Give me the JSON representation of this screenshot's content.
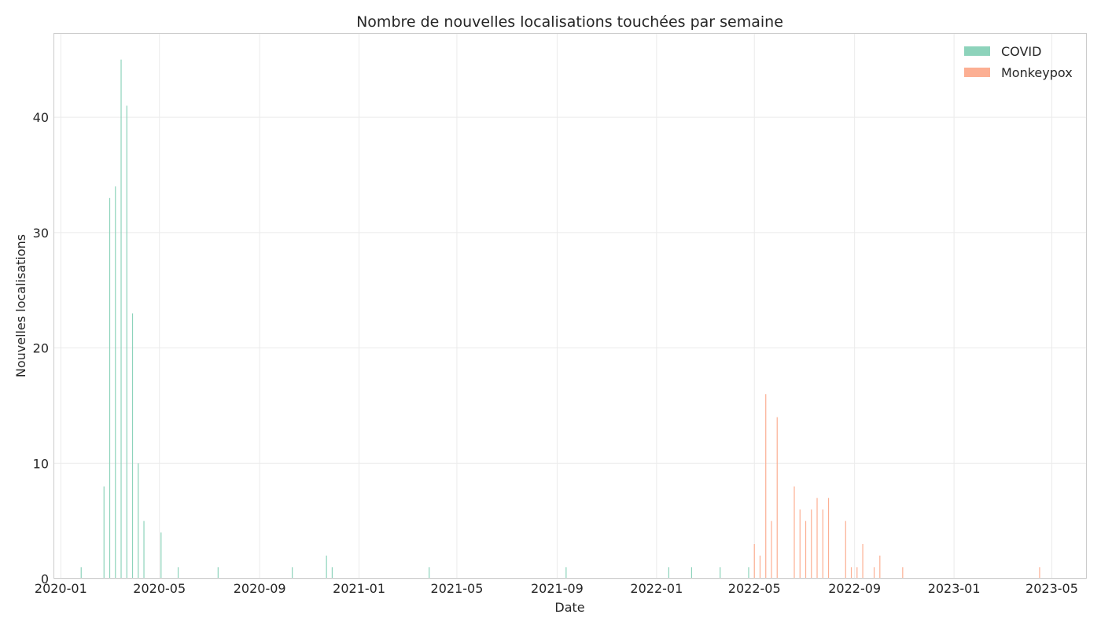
{
  "chart_data": {
    "type": "bar",
    "title": "Nombre de nouvelles localisations touchées par semaine",
    "xlabel": "Date",
    "ylabel": "Nouvelles localisations",
    "xlim": [
      "2019-12-23",
      "2023-06-12"
    ],
    "ylim": [
      0,
      47.3
    ],
    "x_ticks": [
      "2020-01",
      "2020-05",
      "2020-09",
      "2021-01",
      "2021-05",
      "2021-09",
      "2022-01",
      "2022-05",
      "2022-09",
      "2023-01",
      "2023-05"
    ],
    "y_ticks": [
      0,
      10,
      20,
      30,
      40
    ],
    "grid": true,
    "legend_position": "top-right",
    "colors": {
      "COVID": "#8dd3bb",
      "Monkeypox": "#fcaf93"
    },
    "series": [
      {
        "name": "COVID",
        "points": [
          {
            "x": "2020-01-26",
            "y": 1
          },
          {
            "x": "2020-02-23",
            "y": 8
          },
          {
            "x": "2020-03-01",
            "y": 33
          },
          {
            "x": "2020-03-08",
            "y": 34
          },
          {
            "x": "2020-03-15",
            "y": 45
          },
          {
            "x": "2020-03-22",
            "y": 41
          },
          {
            "x": "2020-03-29",
            "y": 23
          },
          {
            "x": "2020-04-05",
            "y": 10
          },
          {
            "x": "2020-04-12",
            "y": 5
          },
          {
            "x": "2020-05-03",
            "y": 4
          },
          {
            "x": "2020-05-24",
            "y": 1
          },
          {
            "x": "2020-07-12",
            "y": 1
          },
          {
            "x": "2020-10-11",
            "y": 1
          },
          {
            "x": "2020-11-22",
            "y": 2
          },
          {
            "x": "2020-11-29",
            "y": 1
          },
          {
            "x": "2021-03-28",
            "y": 1
          },
          {
            "x": "2021-09-12",
            "y": 1
          },
          {
            "x": "2022-01-16",
            "y": 1
          },
          {
            "x": "2022-02-13",
            "y": 1
          },
          {
            "x": "2022-03-20",
            "y": 1
          },
          {
            "x": "2022-04-24",
            "y": 1
          }
        ]
      },
      {
        "name": "Monkeypox",
        "points": [
          {
            "x": "2022-05-01",
            "y": 3
          },
          {
            "x": "2022-05-08",
            "y": 2
          },
          {
            "x": "2022-05-15",
            "y": 16
          },
          {
            "x": "2022-05-22",
            "y": 5
          },
          {
            "x": "2022-05-29",
            "y": 14
          },
          {
            "x": "2022-06-19",
            "y": 8
          },
          {
            "x": "2022-06-26",
            "y": 6
          },
          {
            "x": "2022-07-03",
            "y": 5
          },
          {
            "x": "2022-07-10",
            "y": 6
          },
          {
            "x": "2022-07-17",
            "y": 7
          },
          {
            "x": "2022-07-24",
            "y": 6
          },
          {
            "x": "2022-07-31",
            "y": 7
          },
          {
            "x": "2022-08-21",
            "y": 5
          },
          {
            "x": "2022-08-28",
            "y": 1
          },
          {
            "x": "2022-09-04",
            "y": 1
          },
          {
            "x": "2022-09-11",
            "y": 3
          },
          {
            "x": "2022-09-25",
            "y": 1
          },
          {
            "x": "2022-10-02",
            "y": 2
          },
          {
            "x": "2022-10-30",
            "y": 1
          },
          {
            "x": "2023-04-16",
            "y": 1
          }
        ]
      }
    ]
  }
}
